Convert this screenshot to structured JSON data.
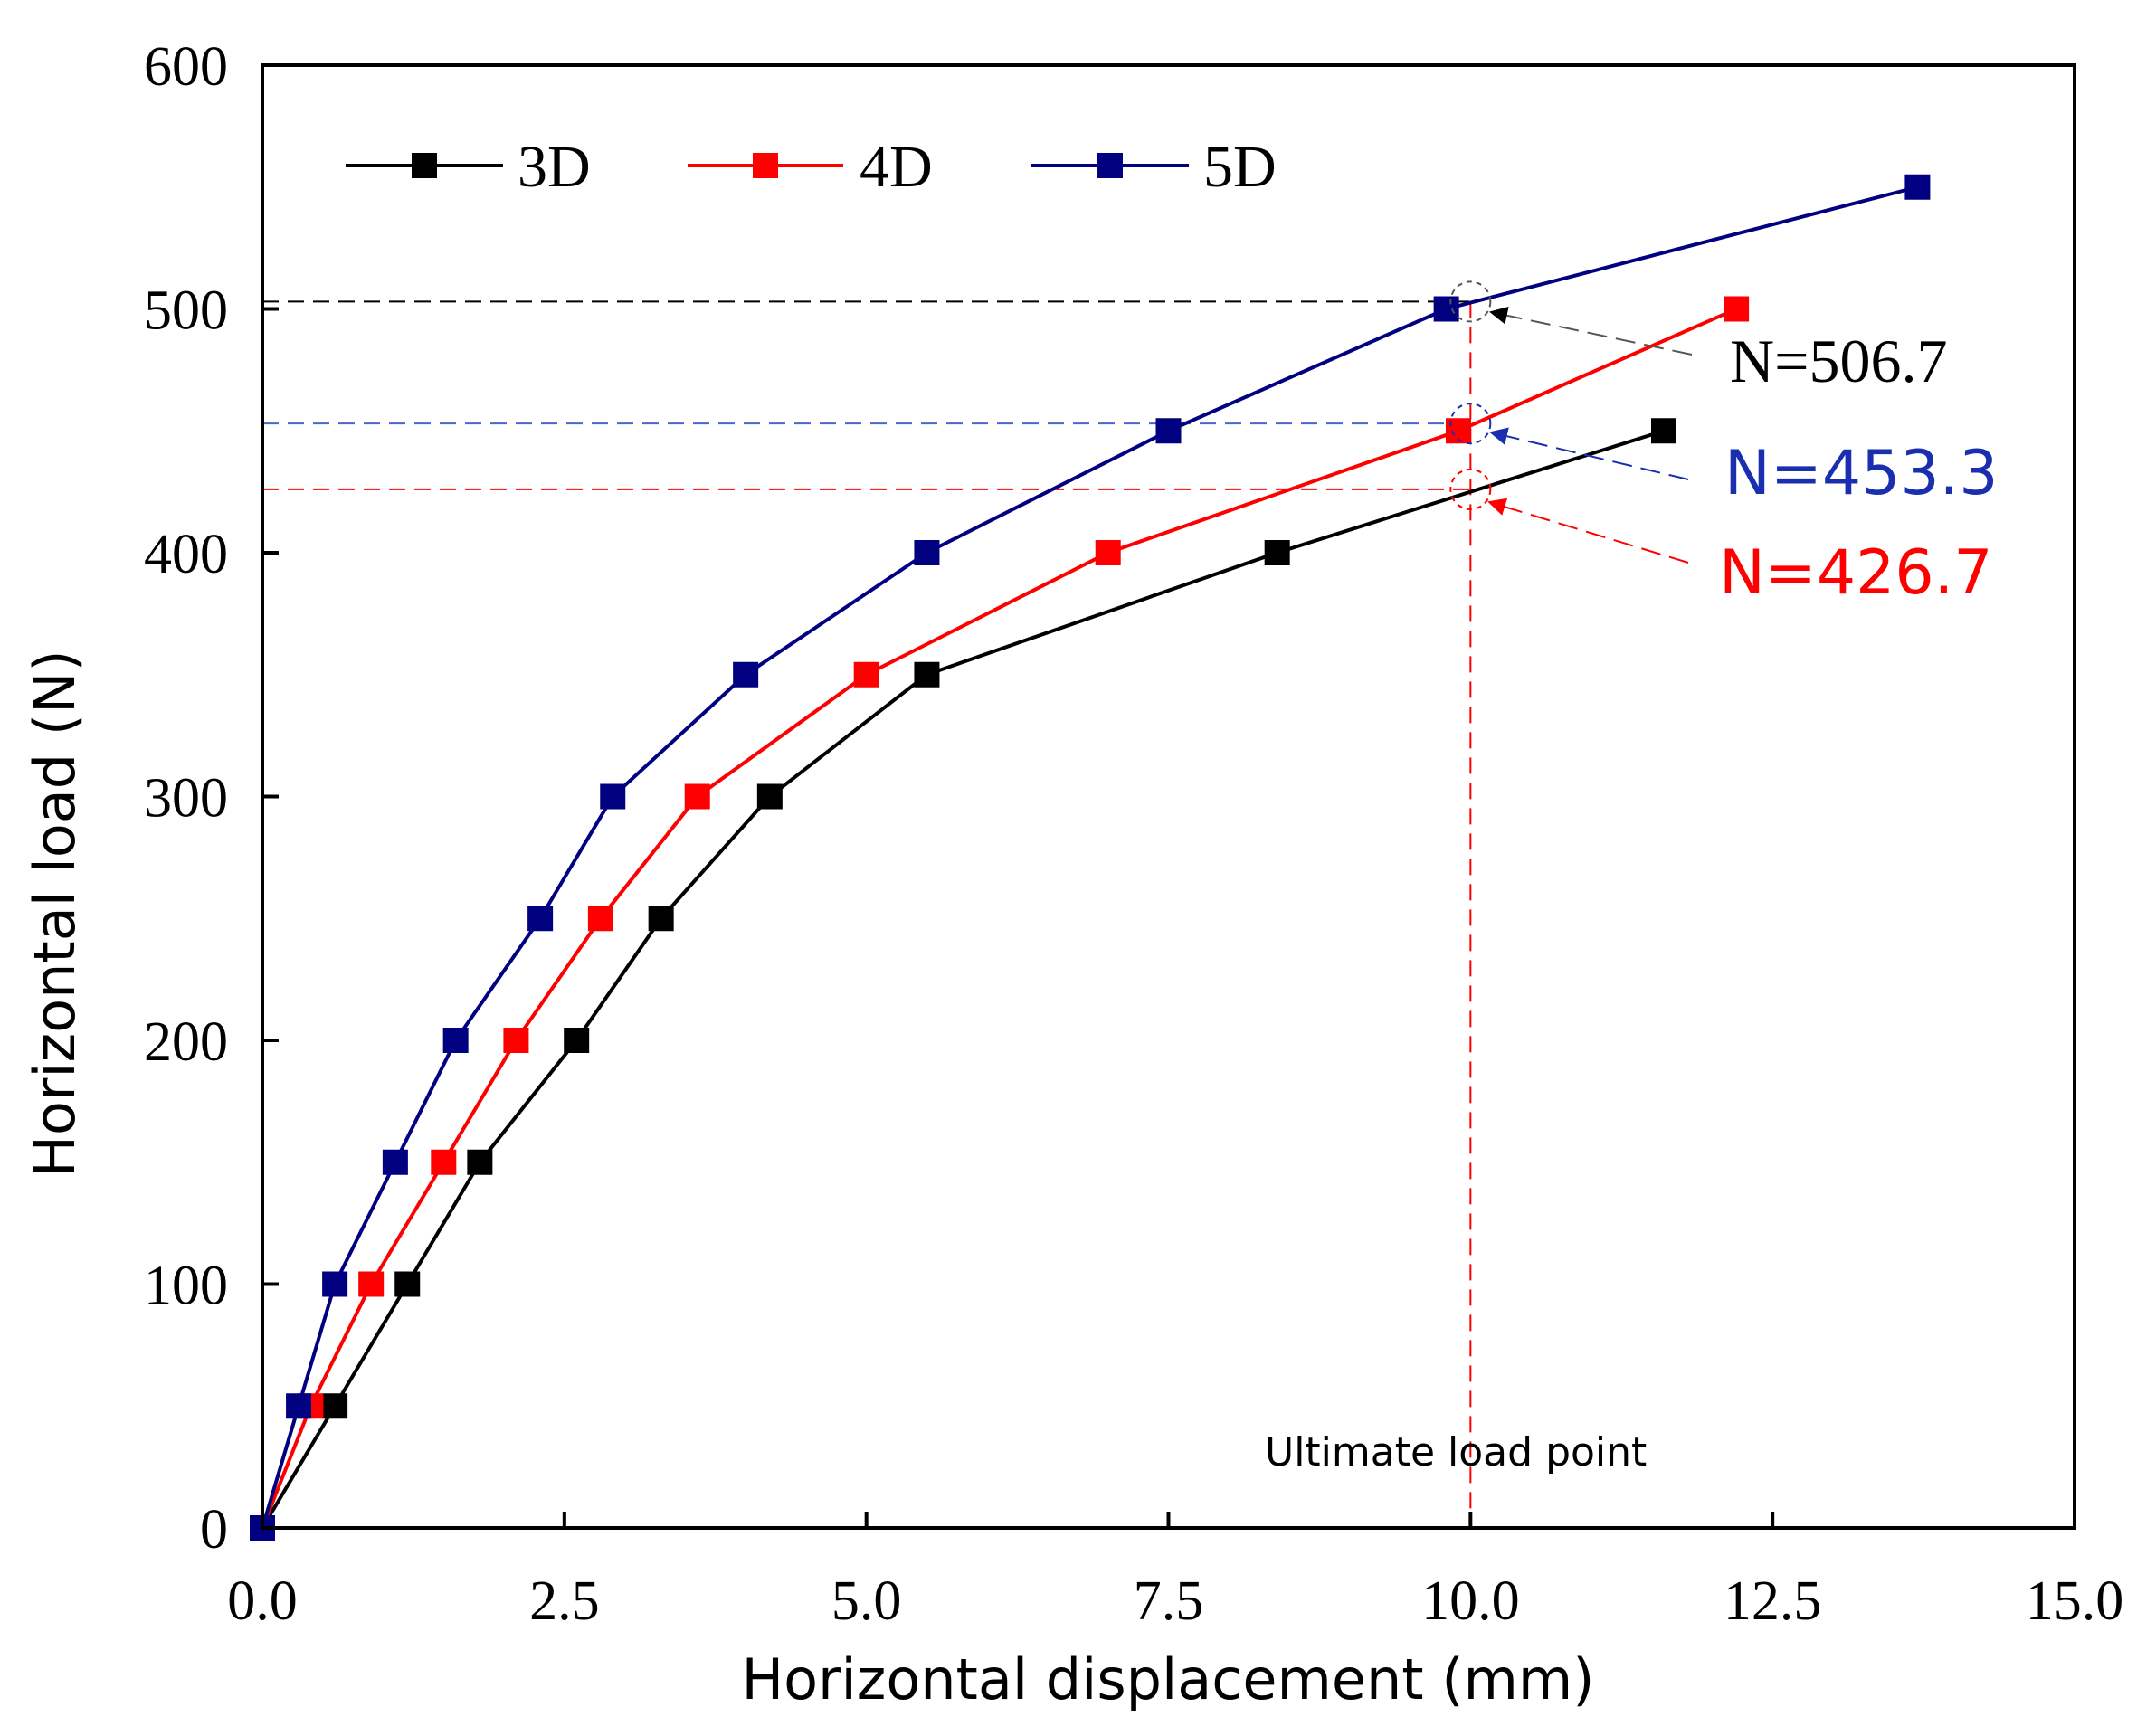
{
  "chart_data": {
    "type": "line",
    "title": "",
    "xlabel": "Horizontal displacement (mm)",
    "ylabel": "Horizontal load (N)",
    "xlim": [
      0,
      15
    ],
    "ylim": [
      0,
      600
    ],
    "xticks": [
      0,
      2.5,
      5,
      7.5,
      10,
      12.5,
      15
    ],
    "xtick_labels": [
      "0.0",
      "2.5",
      "5.0",
      "7.5",
      "10.0",
      "12.5",
      "15.0"
    ],
    "yticks": [
      0,
      100,
      200,
      300,
      400,
      500,
      600
    ],
    "ytick_labels": [
      "0",
      "100",
      "200",
      "300",
      "400",
      "500",
      "600"
    ],
    "grid": false,
    "legend_position": "top-left",
    "series": [
      {
        "name": "3D",
        "color": "#000000",
        "x": [
          0,
          0.6,
          1.2,
          1.8,
          2.6,
          3.3,
          4.2,
          5.5,
          8.4,
          11.6
        ],
        "y": [
          0,
          50,
          100,
          150,
          200,
          250,
          300,
          350,
          400,
          450
        ]
      },
      {
        "name": "4D",
        "color": "#ff0000",
        "x": [
          0,
          0.4,
          0.9,
          1.5,
          2.1,
          2.8,
          3.6,
          5.0,
          7.0,
          9.9,
          12.2
        ],
        "y": [
          0,
          50,
          100,
          150,
          200,
          250,
          300,
          350,
          400,
          450,
          500
        ]
      },
      {
        "name": "5D",
        "color": "#000080",
        "x": [
          0,
          0.3,
          0.6,
          1.1,
          1.6,
          2.3,
          2.9,
          4.0,
          5.5,
          7.5,
          9.8,
          13.7
        ],
        "y": [
          0,
          50,
          100,
          150,
          200,
          250,
          300,
          350,
          400,
          450,
          500,
          550
        ]
      }
    ],
    "reference_lines": {
      "vertical": {
        "x": 10,
        "color": "#ff0000"
      },
      "horizontal": [
        {
          "y": 503,
          "color": "#000000"
        },
        {
          "y": 453,
          "color": "#4a66c8"
        },
        {
          "y": 426,
          "color": "#ff0000"
        }
      ]
    },
    "annotations": [
      {
        "text": "N=506.7",
        "color": "#000000",
        "x": 10,
        "y": 503
      },
      {
        "text": "N=453.3",
        "color": "#1a2fb0",
        "x": 10,
        "y": 453
      },
      {
        "text": "N=426.7",
        "color": "#ff0000",
        "x": 10,
        "y": 426
      }
    ],
    "note": "Ultimate load point"
  }
}
